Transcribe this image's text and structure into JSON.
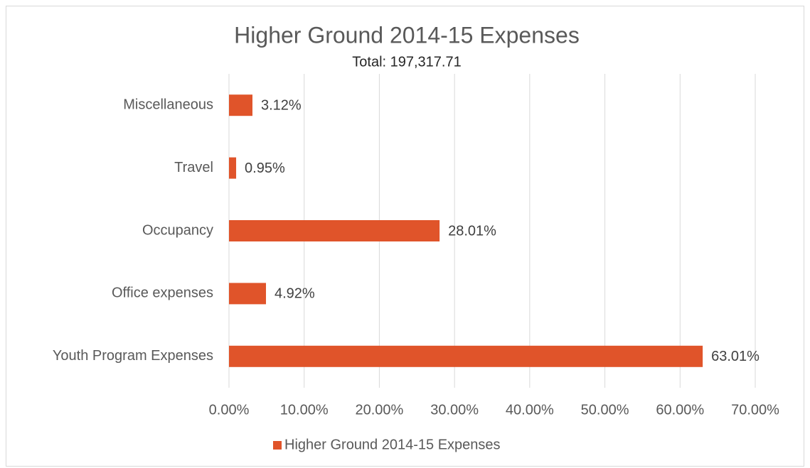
{
  "chart_data": {
    "type": "hbar",
    "title": "Higher Ground 2014-15 Expenses",
    "subtitle": "Total: 197,317.71",
    "categories": [
      "Miscellaneous",
      "Travel",
      "Occupancy",
      "Office expenses",
      "Youth Program Expenses"
    ],
    "series": [
      {
        "name": "Higher Ground 2014-15 Expenses",
        "color": "#e0542a",
        "values": [
          3.12,
          0.95,
          28.01,
          4.92,
          63.01
        ],
        "value_labels": [
          "3.12%",
          "0.95%",
          "28.01%",
          "4.92%",
          "63.01%"
        ]
      }
    ],
    "xlim": [
      0,
      70
    ],
    "xticks": [
      {
        "value": 0,
        "label": "0.00%"
      },
      {
        "value": 10,
        "label": "10.00%"
      },
      {
        "value": 20,
        "label": "20.00%"
      },
      {
        "value": 30,
        "label": "30.00%"
      },
      {
        "value": 40,
        "label": "40.00%"
      },
      {
        "value": 50,
        "label": "50.00%"
      },
      {
        "value": 60,
        "label": "60.00%"
      },
      {
        "value": 70,
        "label": "70.00%"
      }
    ],
    "grid": true,
    "legend": "bottom"
  }
}
